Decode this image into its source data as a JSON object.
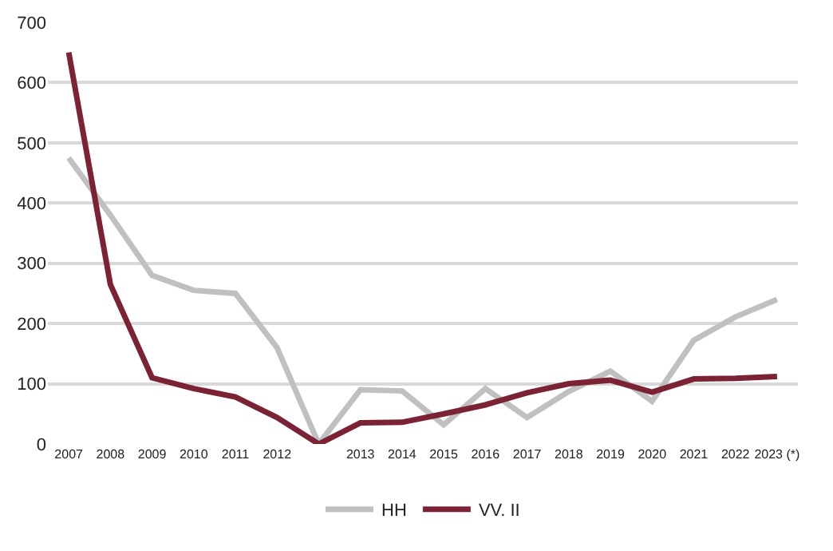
{
  "chart_data": {
    "type": "line",
    "categories": [
      "2007",
      "2008",
      "2009",
      "2010",
      "2011",
      "2012",
      null,
      "2013",
      "2014",
      "2015",
      "2016",
      "2017",
      "2018",
      "2019",
      "2020",
      "2021",
      "2022",
      "2023 (*)"
    ],
    "series": [
      {
        "name": "HH",
        "color": "#c0c0c0",
        "values": [
          475,
          380,
          280,
          255,
          250,
          160,
          0,
          90,
          88,
          32,
          92,
          44,
          87,
          121,
          71,
          172,
          211,
          240
        ]
      },
      {
        "name": "VV. II",
        "color": "#7b2334",
        "values": [
          650,
          265,
          110,
          92,
          78,
          44,
          0,
          35,
          36,
          50,
          65,
          85,
          100,
          106,
          86,
          108,
          109,
          112
        ]
      }
    ],
    "ylim": [
      0,
      700
    ],
    "yticks": [
      0,
      100,
      200,
      300,
      400,
      500,
      600,
      700
    ],
    "grid": "y",
    "legend": "bottom",
    "marker": "none",
    "line_style": "solid"
  }
}
